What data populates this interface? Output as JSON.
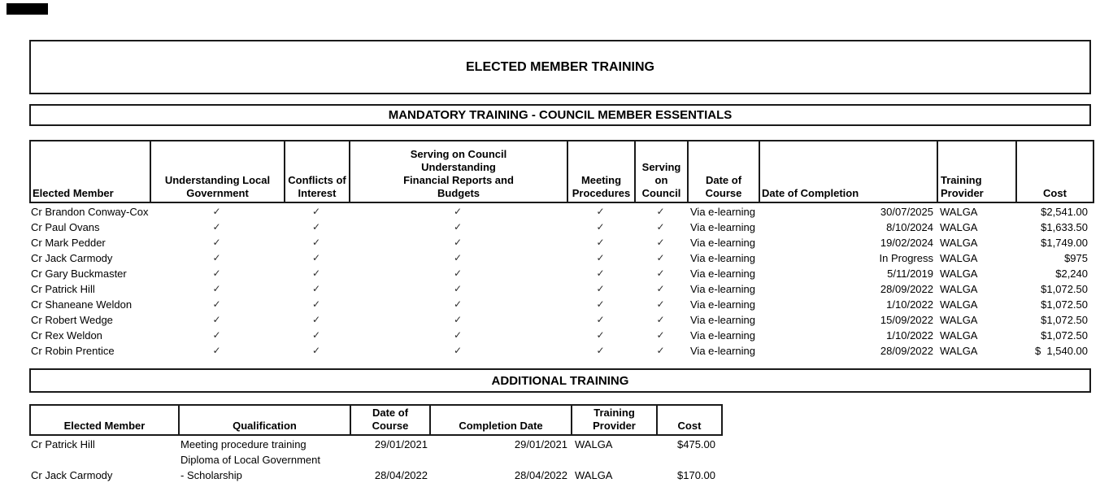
{
  "colors": {
    "background": "#ffffff",
    "border": "#1a1a1a",
    "text": "#000000",
    "redaction_bar": "#000000"
  },
  "page_title": "ELECTED MEMBER TRAINING",
  "section_mandatory": {
    "title": "MANDATORY TRAINING - COUNCIL MEMBER ESSENTIALS"
  },
  "section_additional": {
    "title": "ADDITIONAL TRAINING"
  },
  "mandatory_table": {
    "columns": [
      "Elected Member",
      "Understanding Local\nGovernment",
      "Conflicts of\nInterest",
      "Serving on Council\nUnderstanding\nFinancial Reports and\nBudgets",
      "Meeting\nProcedures",
      "Serving\non\nCouncil",
      "Date of\nCourse",
      "Date of Completion",
      "Training\nProvider",
      "Cost"
    ],
    "check_glyph": "✓",
    "rows": [
      {
        "name": "Cr Brandon Conway-Cox",
        "checks": [
          "✓",
          "✓",
          "✓",
          "✓",
          "✓"
        ],
        "date_of_course": "Via e-learning",
        "date_of_completion": "30/07/2025",
        "provider": "WALGA",
        "cost": "$2,541.00"
      },
      {
        "name": "Cr Paul Ovans",
        "checks": [
          "✓",
          "✓",
          "✓",
          "✓",
          "✓"
        ],
        "date_of_course": "Via e-learning",
        "date_of_completion": "8/10/2024",
        "provider": "WALGA",
        "cost": "$1,633.50"
      },
      {
        "name": "Cr Mark Pedder",
        "checks": [
          "✓",
          "✓",
          "✓",
          "✓",
          "✓"
        ],
        "date_of_course": "Via e-learning",
        "date_of_completion": "19/02/2024",
        "provider": "WALGA",
        "cost": "$1,749.00"
      },
      {
        "name": "Cr Jack Carmody",
        "checks": [
          "✓",
          "✓",
          "✓",
          "✓",
          "✓"
        ],
        "date_of_course": "Via e-learning",
        "date_of_completion": "In Progress",
        "provider": "WALGA",
        "cost": "$975"
      },
      {
        "name": "Cr Gary Buckmaster",
        "checks": [
          "✓",
          "✓",
          "✓",
          "✓",
          "✓"
        ],
        "date_of_course": "Via e-learning",
        "date_of_completion": "5/11/2019",
        "provider": "WALGA",
        "cost": "$2,240"
      },
      {
        "name": "Cr Patrick Hill",
        "checks": [
          "✓",
          "✓",
          "✓",
          "✓",
          "✓"
        ],
        "date_of_course": "Via e-learning",
        "date_of_completion": "28/09/2022",
        "provider": "WALGA",
        "cost": "$1,072.50"
      },
      {
        "name": "Cr Shaneane Weldon",
        "checks": [
          "✓",
          "✓",
          "✓",
          "✓",
          "✓"
        ],
        "date_of_course": "Via e-learning",
        "date_of_completion": "1/10/2022",
        "provider": "WALGA",
        "cost": "$1,072.50"
      },
      {
        "name": "Cr Robert Wedge",
        "checks": [
          "✓",
          "✓",
          "✓",
          "✓",
          "✓"
        ],
        "date_of_course": "Via e-learning",
        "date_of_completion": "15/09/2022",
        "provider": "WALGA",
        "cost": "$1,072.50"
      },
      {
        "name": "Cr Rex Weldon",
        "checks": [
          "✓",
          "✓",
          "✓",
          "✓",
          "✓"
        ],
        "date_of_course": "Via e-learning",
        "date_of_completion": "1/10/2022",
        "provider": "WALGA",
        "cost": "$1,072.50"
      },
      {
        "name": "Cr Robin Prentice",
        "checks": [
          "✓",
          "✓",
          "✓",
          "✓",
          "✓"
        ],
        "date_of_course": "Via e-learning",
        "date_of_completion": "28/09/2022",
        "provider": "WALGA",
        "cost": "$  1,540.00"
      }
    ]
  },
  "additional_table": {
    "columns": [
      "Elected Member",
      "Qualification",
      "Date of\nCourse",
      "Completion Date",
      "Training\nProvider",
      "Cost"
    ],
    "rows": [
      {
        "member": "Cr Patrick Hill",
        "qualification": [
          "Meeting procedure training"
        ],
        "date_of_course": "29/01/2021",
        "completion_date": "29/01/2021",
        "provider": "WALGA",
        "cost": "$475.00"
      },
      {
        "member": "Cr Jack Carmody",
        "qualification": [
          "Diploma of Local Government",
          "- Scholarship"
        ],
        "date_of_course": "28/04/2022",
        "completion_date": "28/04/2022",
        "provider": "WALGA",
        "cost": "$170.00"
      }
    ]
  }
}
